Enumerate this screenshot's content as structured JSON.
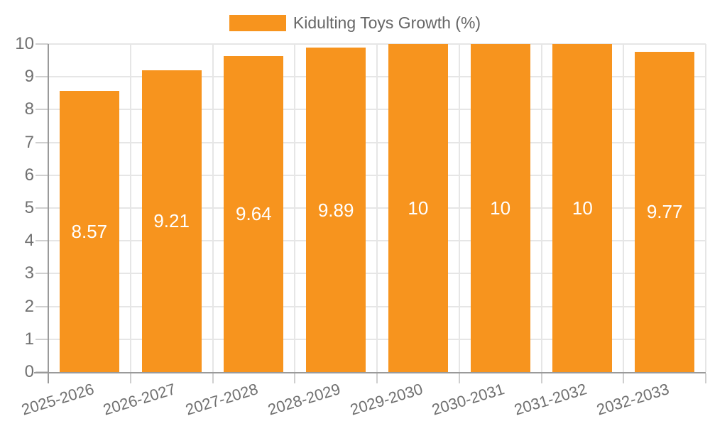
{
  "legend": {
    "label": "Kidulting Toys Growth (%)"
  },
  "chart_data": {
    "type": "bar",
    "title": "",
    "series_name": "Kidulting Toys Growth (%)",
    "categories": [
      "2025-2026",
      "2026-2027",
      "2027-2028",
      "2028-2029",
      "2029-2030",
      "2030-2031",
      "2031-2032",
      "2032-2033"
    ],
    "values": [
      8.57,
      9.21,
      9.64,
      9.89,
      10,
      10,
      10,
      9.77
    ],
    "bar_labels": [
      "8.57",
      "9.21",
      "9.64",
      "9.89",
      "10",
      "10",
      "10",
      "9.77"
    ],
    "xlabel": "",
    "ylabel": "",
    "ylim": [
      0,
      10
    ],
    "yticks": [
      0,
      1,
      2,
      3,
      4,
      5,
      6,
      7,
      8,
      9,
      10
    ],
    "grid": true,
    "legend_position": "top-center",
    "bar_label_position": "center",
    "x_label_rotation_deg": -17,
    "colors": {
      "bar": "#F7941E",
      "bar_label": "#FFFFFF",
      "grid": "#E6E6E6",
      "axis": "#9A9A9A",
      "tick": "#CFCFCF",
      "axis_text": "#707070",
      "legend_text": "#666666",
      "bg": "#FFFFFF"
    }
  }
}
